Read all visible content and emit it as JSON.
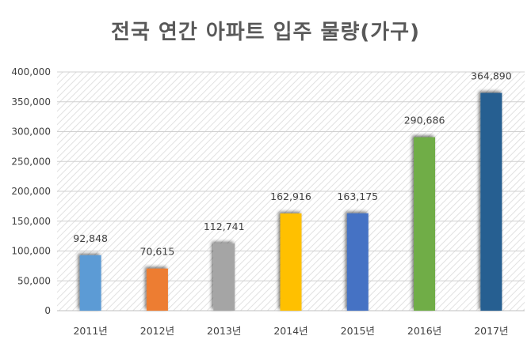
{
  "chart_data": {
    "type": "bar",
    "title": "전국 연간 아파트 입주 물량(가구)",
    "categories": [
      "2011년",
      "2012년",
      "2013년",
      "2014년",
      "2015년",
      "2016년",
      "2017년"
    ],
    "values": [
      92848,
      70615,
      112741,
      162916,
      163175,
      290686,
      364890
    ],
    "value_labels": [
      "92,848",
      "70,615",
      "112,741",
      "162,916",
      "163,175",
      "290,686",
      "364,890"
    ],
    "bar_colors": [
      "#5B9BD5",
      "#ED7D31",
      "#A5A5A5",
      "#FFC000",
      "#4472C4",
      "#70AD47",
      "#255E91"
    ],
    "ylim": [
      0,
      400000
    ],
    "yticks": [
      0,
      50000,
      100000,
      150000,
      200000,
      250000,
      300000,
      350000,
      400000
    ],
    "ytick_labels": [
      "0",
      "50,000",
      "100,000",
      "150,000",
      "200,000",
      "250,000",
      "300,000",
      "350,000",
      "400,000"
    ],
    "grid": true,
    "xlabel": "",
    "ylabel": "",
    "legend": "none"
  }
}
